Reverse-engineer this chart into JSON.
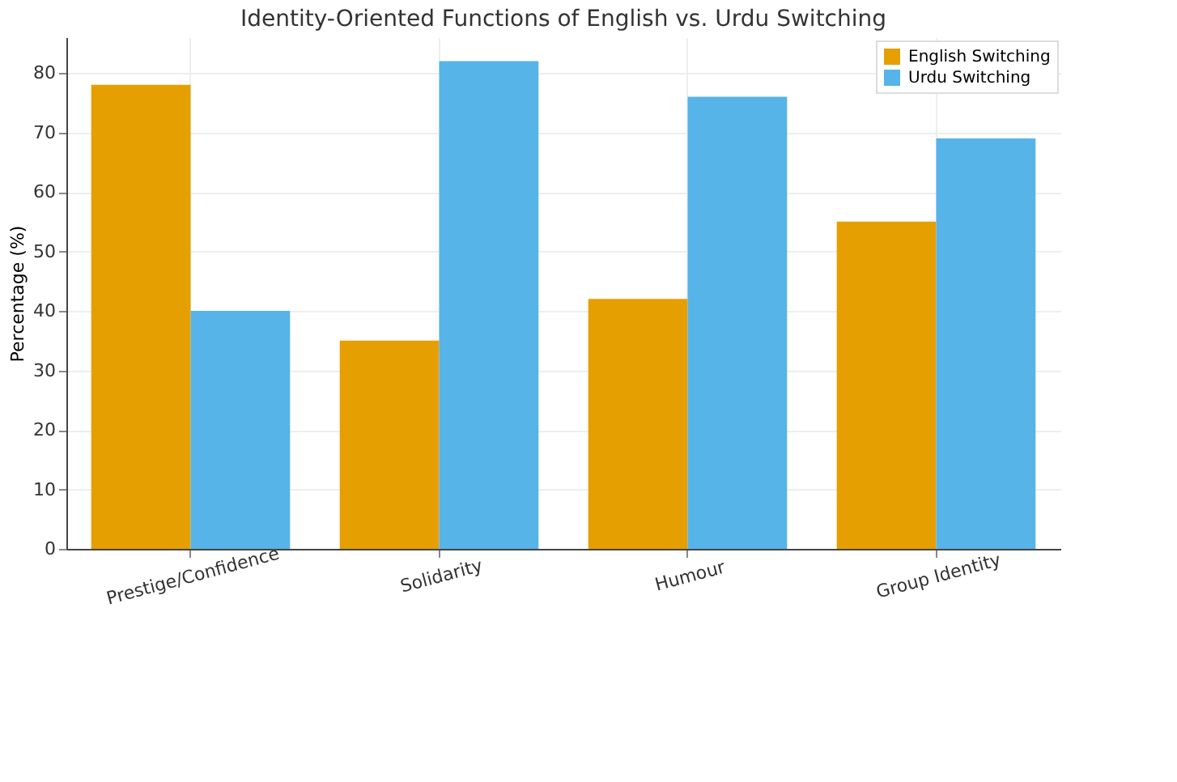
{
  "chart_data": {
    "type": "bar",
    "title": "Identity-Oriented Functions of English vs. Urdu Switching",
    "ylabel": "Percentage (%)",
    "categories": [
      "Prestige/Confidence",
      "Solidarity",
      "Humour",
      "Group Identity"
    ],
    "series": [
      {
        "name": "English Switching",
        "color": "#e69f00",
        "values": [
          78,
          35,
          42,
          55
        ]
      },
      {
        "name": "Urdu Switching",
        "color": "#56b4e9",
        "values": [
          40,
          82,
          76,
          69
        ]
      }
    ],
    "ylim": [
      0,
      86
    ],
    "yticks": [
      0,
      10,
      20,
      30,
      40,
      50,
      60,
      70,
      80
    ],
    "grid": true,
    "legend": "top right"
  }
}
